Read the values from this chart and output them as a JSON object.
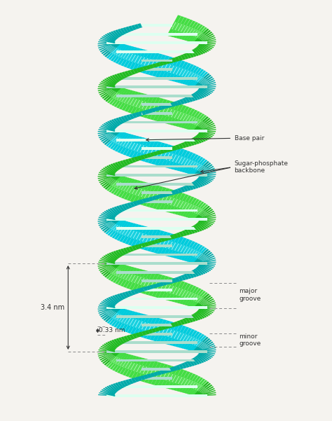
{
  "background_color": "#f5f3ef",
  "green_dark": "#22bb22",
  "green_mid": "#44dd44",
  "green_light": "#99ee88",
  "green_highlight": "#ccffcc",
  "cyan_dark": "#00aaaa",
  "cyan_mid": "#00ccdd",
  "cyan_light": "#66ddee",
  "cyan_highlight": "#ccffff",
  "bp_color": "#aaddcc",
  "bp_light": "#ddfff0",
  "annotation_color": "#333333",
  "dashed_color": "#888888",
  "label_minor_groove": "minor\ngroove",
  "label_major_groove": "major\ngroove",
  "label_sugar_phosphate": "Sugar-phosphate\nbackbone",
  "label_base_pair": "Base pair",
  "label_033nm": "0.33 nm",
  "label_34nm": "3.4 nm",
  "figsize": [
    4.74,
    6.01
  ],
  "dpi": 100
}
